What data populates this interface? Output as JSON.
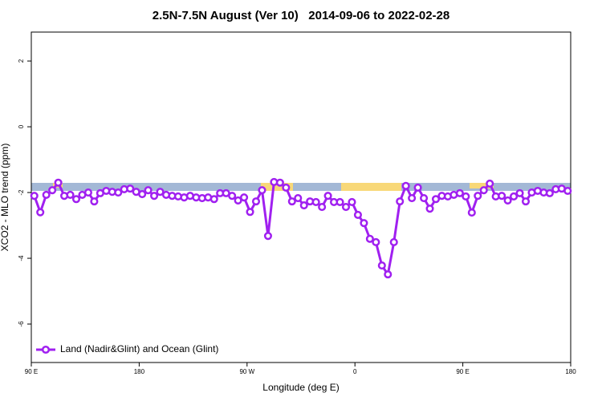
{
  "chart_data": {
    "type": "line",
    "title": "2.5N-7.5N August (Ver 10)   2014-09-06 to 2022-02-28",
    "xlabel": "Longitude (deg E)",
    "ylabel": "XCO2 - MLO trend (ppm)",
    "xlim": [
      90,
      540
    ],
    "xticks": [
      {
        "value": 90,
        "label": "90 E"
      },
      180,
      {
        "value": 270,
        "label": "90 W"
      },
      {
        "value": 360,
        "label": "0"
      },
      {
        "value": 450,
        "label": "90 E"
      },
      {
        "value": 540,
        "label": "180"
      }
    ],
    "ylim": [
      -7.17,
      2.88
    ],
    "yticks": [
      2,
      0,
      -2,
      -4,
      -6
    ],
    "legend": "bottom-left",
    "x": [
      92.5,
      97.5,
      102.5,
      107.5,
      112.5,
      117.5,
      122.5,
      127.5,
      132.5,
      137.5,
      142.5,
      147.5,
      152.5,
      157.5,
      162.5,
      167.5,
      172.5,
      177.5,
      182.5,
      187.5,
      192.5,
      197.5,
      202.5,
      207.5,
      212.5,
      217.5,
      222.5,
      227.5,
      232.5,
      237.5,
      242.5,
      247.5,
      252.5,
      257.5,
      262.5,
      267.5,
      272.5,
      277.5,
      282.5,
      287.5,
      292.5,
      297.5,
      302.5,
      307.5,
      312.5,
      317.5,
      322.5,
      327.5,
      332.5,
      337.5,
      342.5,
      347.5,
      352.5,
      357.5,
      362.5,
      367.5,
      372.5,
      377.5,
      382.5,
      387.5,
      392.5,
      397.5,
      402.5,
      407.5,
      412.5,
      417.5,
      422.5,
      427.5,
      432.5,
      437.5,
      442.5,
      447.5,
      452.5,
      457.5,
      462.5,
      467.5,
      472.5,
      477.5,
      482.5,
      487.5,
      492.5,
      497.5,
      502.5,
      507.5,
      512.5,
      517.5,
      522.5,
      527.5,
      532.5,
      537.5
    ],
    "series": [
      {
        "name": "Land (Nadir&Glint) and Ocean (Glint)",
        "color": "#a020f0",
        "values": [
          -2.1,
          -2.6,
          -2.07,
          -1.93,
          -1.7,
          -2.1,
          -2.07,
          -2.2,
          -2.07,
          -2.0,
          -2.27,
          -2.02,
          -1.95,
          -1.98,
          -2.0,
          -1.9,
          -1.88,
          -1.98,
          -2.05,
          -1.93,
          -2.1,
          -1.98,
          -2.07,
          -2.1,
          -2.12,
          -2.15,
          -2.1,
          -2.15,
          -2.17,
          -2.15,
          -2.2,
          -2.02,
          -2.02,
          -2.1,
          -2.24,
          -2.15,
          -2.59,
          -2.27,
          -1.93,
          -3.32,
          -1.68,
          -1.7,
          -1.85,
          -2.27,
          -2.17,
          -2.39,
          -2.27,
          -2.29,
          -2.44,
          -2.1,
          -2.29,
          -2.29,
          -2.44,
          -2.29,
          -2.68,
          -2.93,
          -3.41,
          -3.51,
          -4.22,
          -4.49,
          -3.51,
          -2.27,
          -1.8,
          -2.17,
          -1.85,
          -2.17,
          -2.49,
          -2.2,
          -2.1,
          -2.12,
          -2.07,
          -2.02,
          -2.12,
          -2.61,
          -2.1,
          -1.93,
          -1.73,
          -2.12,
          -2.1,
          -2.24,
          -2.12,
          -2.02,
          -2.27,
          -2.0,
          -1.95,
          -2.0,
          -2.02,
          -1.9,
          -1.88,
          -1.95
        ]
      }
    ]
  }
}
